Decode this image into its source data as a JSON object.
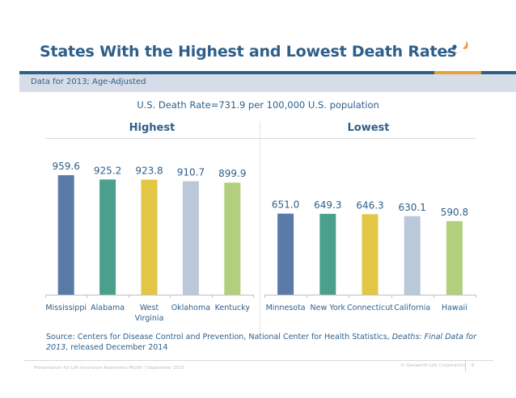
{
  "slide": {
    "title": "States With the Highest and Lowest Death Rates",
    "subtitle": "Data for 2013; Age-Adjusted",
    "us_rate_note": "U.S. Death Rate=731.9 per 100,000 U.S. population",
    "logo_icon": "genworth-figure-logo-icon",
    "colors": {
      "title": "#2e5f8a",
      "rule_blue": "#2e5f8a",
      "rule_orange": "#e8a13a",
      "subbar": "#d7dde8"
    },
    "source": {
      "prefix": "Source: Centers for Disease Control and Prevention, National Center for Health Statistics, ",
      "italic": "Deaths: Final Data for 2013",
      "suffix": ", released December 2014"
    },
    "footer": {
      "left": "Presentation for Life Insurance Awareness Month | September 2015",
      "right": "© Genworth Life Corporation",
      "page": "6"
    }
  },
  "chart_data": [
    {
      "type": "bar",
      "title": "Highest",
      "categories": [
        "Mississippi",
        "Alabama",
        "West Virginia",
        "Oklahoma",
        "Kentucky"
      ],
      "category_lines": [
        [
          "Mississippi"
        ],
        [
          "Alabama"
        ],
        [
          "West",
          "Virginia"
        ],
        [
          "Oklahoma"
        ],
        [
          "Kentucky"
        ]
      ],
      "values": [
        959.6,
        925.2,
        923.8,
        910.7,
        899.9
      ],
      "labels": [
        "959.6",
        "925.2",
        "923.8",
        "910.7",
        "899.9"
      ],
      "colors": [
        "#5a7aa8",
        "#4aa08c",
        "#e2c644",
        "#bac8da",
        "#b2cf7e"
      ],
      "xlabel": "",
      "ylabel": "",
      "ylim": [
        0,
        1000
      ],
      "grid": false,
      "legend": "none"
    },
    {
      "type": "bar",
      "title": "Lowest",
      "categories": [
        "Minnesota",
        "New York",
        "Connecticut",
        "California",
        "Hawaii"
      ],
      "category_lines": [
        [
          "Minnesota"
        ],
        [
          "New York"
        ],
        [
          "Connecticut"
        ],
        [
          "California"
        ],
        [
          "Hawaii"
        ]
      ],
      "values": [
        651.0,
        649.3,
        646.3,
        630.1,
        590.8
      ],
      "labels": [
        "651.0",
        "649.3",
        "646.3",
        "630.1",
        "590.8"
      ],
      "colors": [
        "#5a7aa8",
        "#4aa08c",
        "#e2c644",
        "#bac8da",
        "#b2cf7e"
      ],
      "xlabel": "",
      "ylabel": "",
      "ylim": [
        0,
        1000
      ],
      "grid": false,
      "legend": "none"
    }
  ]
}
